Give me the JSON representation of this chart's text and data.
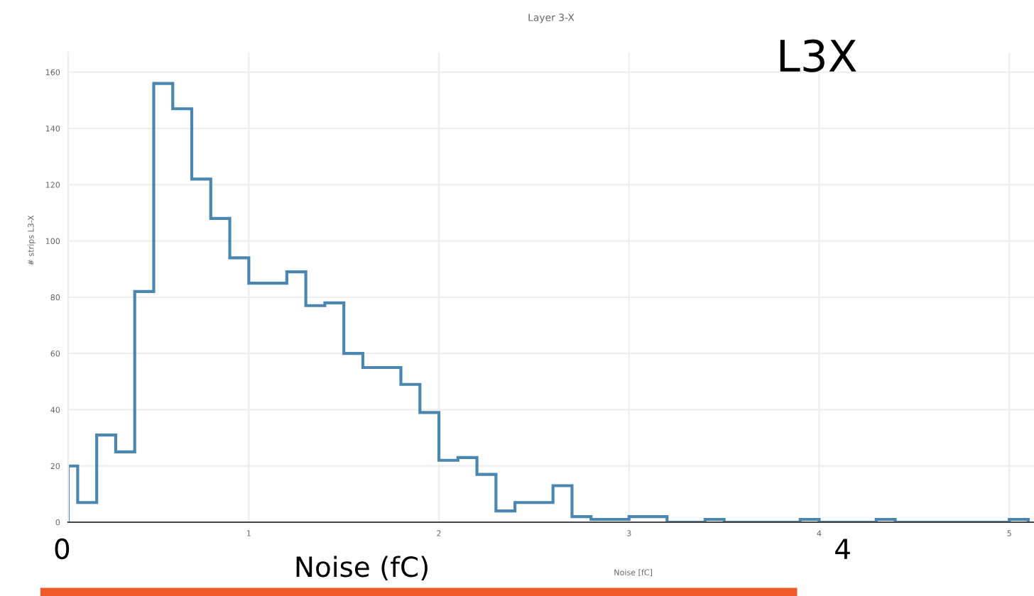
{
  "chart_data": {
    "type": "histogram",
    "title": "Layer 3-X",
    "xlabel": "Noise [fC]",
    "ylabel": "# strips L3-X",
    "bins": [
      0.05,
      0.1,
      0.2,
      0.3,
      0.4,
      0.5,
      0.6,
      0.7,
      0.8,
      0.9,
      1.0,
      1.1,
      1.2,
      1.3,
      1.4,
      1.5,
      1.6,
      1.7,
      1.8,
      1.9,
      2.0,
      2.1,
      2.2,
      2.3,
      2.4,
      2.5,
      2.6,
      2.7,
      2.8,
      2.9,
      3.0,
      3.1,
      3.2,
      3.3,
      3.4,
      3.5,
      3.6,
      3.7,
      3.8,
      3.9,
      4.0,
      4.1,
      4.2,
      4.3,
      4.4,
      4.5,
      4.6,
      4.7,
      4.8,
      4.9,
      5.0,
      5.1
    ],
    "values": [
      20,
      7,
      31,
      25,
      82,
      156,
      147,
      122,
      108,
      94,
      85,
      85,
      89,
      77,
      78,
      60,
      55,
      55,
      49,
      39,
      22,
      23,
      17,
      4,
      7,
      7,
      13,
      2,
      1,
      1,
      2,
      2,
      0,
      0,
      1,
      0,
      0,
      0,
      0,
      1,
      0,
      0,
      0,
      1,
      0,
      0,
      0,
      0,
      0,
      0,
      1
    ],
    "color": "#4a86b0",
    "xlim": [
      0.05,
      5.13
    ],
    "ylim": [
      0,
      167
    ],
    "xticks": [
      1,
      2,
      3,
      4,
      5
    ],
    "yticks": [
      0,
      20,
      40,
      60,
      80,
      100,
      120,
      140,
      160
    ],
    "grid": true,
    "annotations": [
      "L3X",
      "0",
      "4",
      "Noise (fC)"
    ]
  }
}
